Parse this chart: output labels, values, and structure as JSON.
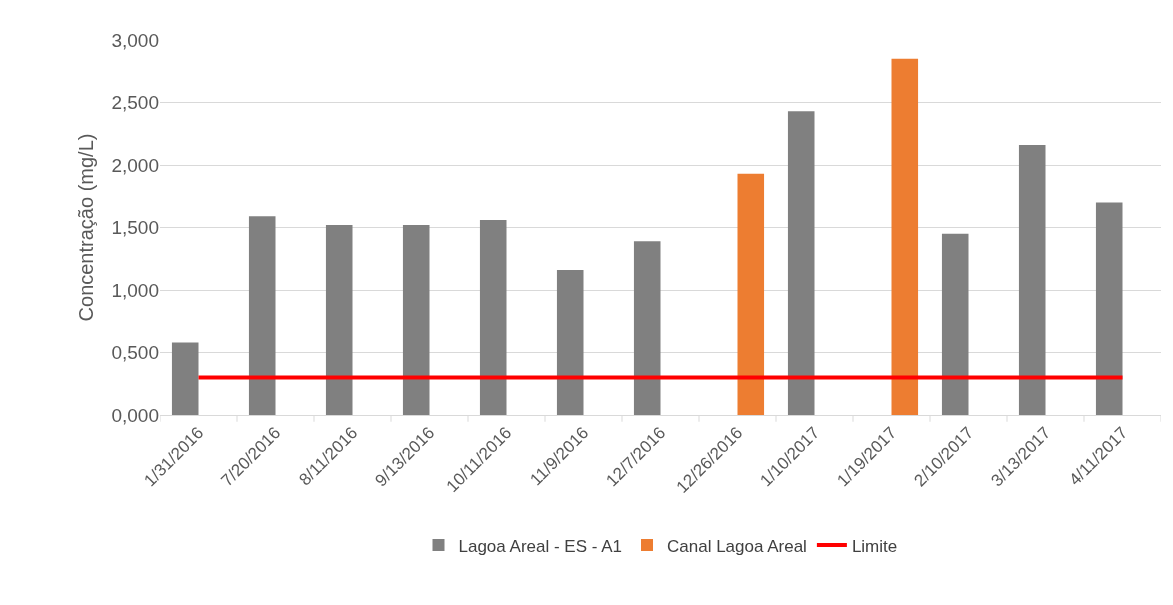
{
  "chart_data": {
    "type": "bar",
    "ylabel": "Concentração (mg/L)",
    "categories": [
      "1/31/2016",
      "7/20/2016",
      "8/11/2016",
      "9/13/2016",
      "10/11/2016",
      "11/9/2016",
      "12/7/2016",
      "12/26/2016",
      "1/10/2017",
      "1/19/2017",
      "2/10/2017",
      "3/13/2017",
      "4/11/2017"
    ],
    "series": [
      {
        "name": "Lagoa Areal - ES - A1",
        "color": "#808080",
        "values": [
          0.58,
          1.59,
          1.52,
          1.52,
          1.56,
          1.16,
          1.39,
          null,
          2.43,
          null,
          1.45,
          2.16,
          1.7
        ]
      },
      {
        "name": "Canal Lagoa Areal",
        "color": "#ed7d31",
        "values": [
          null,
          null,
          null,
          null,
          null,
          null,
          null,
          1.93,
          null,
          2.85,
          null,
          null,
          null
        ]
      },
      {
        "name": "Limite",
        "type": "line",
        "color": "#ff0000",
        "values": [
          0.3,
          0.3,
          0.3,
          0.3,
          0.3,
          0.3,
          0.3,
          0.3,
          0.3,
          0.3,
          0.3,
          0.3,
          0.3
        ]
      }
    ],
    "ylim": [
      0,
      3
    ],
    "yticks": [
      {
        "value": 0,
        "label": "0,000"
      },
      {
        "value": 0.5,
        "label": "0,500"
      },
      {
        "value": 1,
        "label": "1,000"
      },
      {
        "value": 1.5,
        "label": "1,500"
      },
      {
        "value": 2,
        "label": "2,000"
      },
      {
        "value": 2.5,
        "label": "2,500"
      },
      {
        "value": 3,
        "label": "3,000"
      }
    ],
    "grid": "y",
    "legend": "bottom",
    "marker": "none",
    "line_style": "solid"
  }
}
